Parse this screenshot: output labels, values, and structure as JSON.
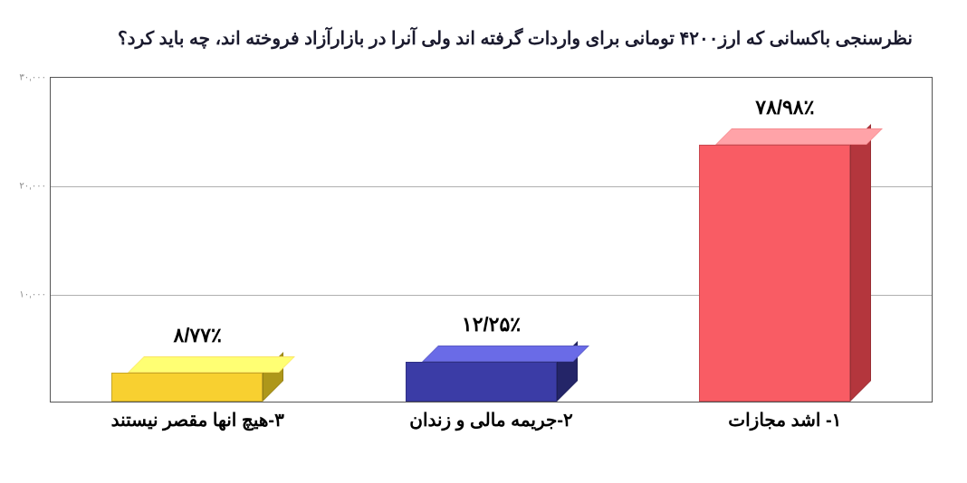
{
  "chart": {
    "type": "bar-3d",
    "title": "نظرسنجی باکسانی که ارز۴۲۰۰ تومانی برای واردات گرفته اند ولی آنرا در بازارآزاد فروخته اند، چه باید کرد؟",
    "title_fontsize": 20,
    "title_color": "#1a1a2e",
    "background_color": "#ffffff",
    "plot_border_color": "#555555",
    "grid_color": "#b0b0b0",
    "ylim": [
      0,
      30000
    ],
    "ytick_step": 10000,
    "yticks": [
      {
        "value": 0,
        "label": ""
      },
      {
        "value": 10000,
        "label": "۱۰,۰۰۰"
      },
      {
        "value": 20000,
        "label": "۲۰,۰۰۰"
      },
      {
        "value": 30000,
        "label": "۳۰,۰۰۰"
      }
    ],
    "label_fontsize": 22,
    "category_fontsize": 20,
    "bars": [
      {
        "category": "۱- اشد مجازات",
        "percent_label": "۷۸/۹۸٪",
        "value": 23700,
        "color": "#f95c64",
        "side_color": "#e1444c",
        "top_color": "#fb8e92"
      },
      {
        "category": "۲-جریمه مالی و زندان",
        "percent_label": "۱۲/۲۵٪",
        "value": 3675,
        "color": "#3b3ca6",
        "side_color": "#2d2e82",
        "top_color": "#5c5dc9"
      },
      {
        "category": "۳-هیچ انها مقصر نیستند",
        "percent_label": "۸/۷۷٪",
        "value": 2631,
        "color": "#f8d030",
        "side_color": "#dabd20",
        "top_color": "#ffe964"
      }
    ]
  }
}
